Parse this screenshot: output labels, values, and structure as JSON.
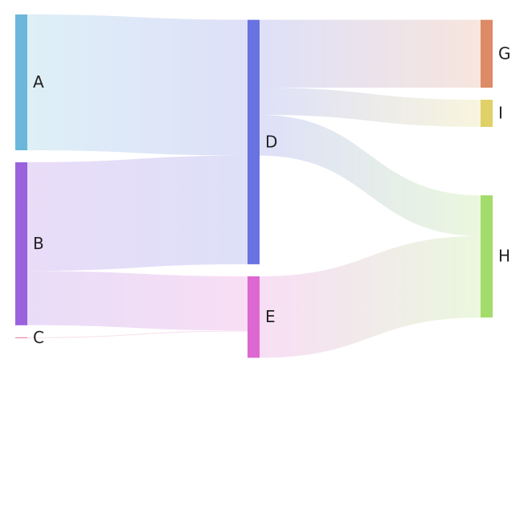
{
  "chart_data": {
    "type": "sankey",
    "nodes": [
      {
        "name": "A",
        "color": "#6bb7db"
      },
      {
        "name": "B",
        "color": "#9b62de"
      },
      {
        "name": "C",
        "color": "#e3728f"
      },
      {
        "name": "D",
        "color": "#6872e0"
      },
      {
        "name": "E",
        "color": "#dd68d1"
      },
      {
        "name": "G",
        "color": "#dd8a66"
      },
      {
        "name": "I",
        "color": "#dfd067"
      },
      {
        "name": "H",
        "color": "#a3dc6a"
      }
    ],
    "links": [
      {
        "source": "A",
        "target": "D",
        "value": 50
      },
      {
        "source": "B",
        "target": "D",
        "value": 40
      },
      {
        "source": "B",
        "target": "E",
        "value": 20
      },
      {
        "source": "C",
        "target": "E",
        "value": 0.3
      },
      {
        "source": "D",
        "target": "G",
        "value": 25
      },
      {
        "source": "D",
        "target": "I",
        "value": 10
      },
      {
        "source": "D",
        "target": "H",
        "value": 15
      },
      {
        "source": "E",
        "target": "H",
        "value": 30
      }
    ]
  }
}
